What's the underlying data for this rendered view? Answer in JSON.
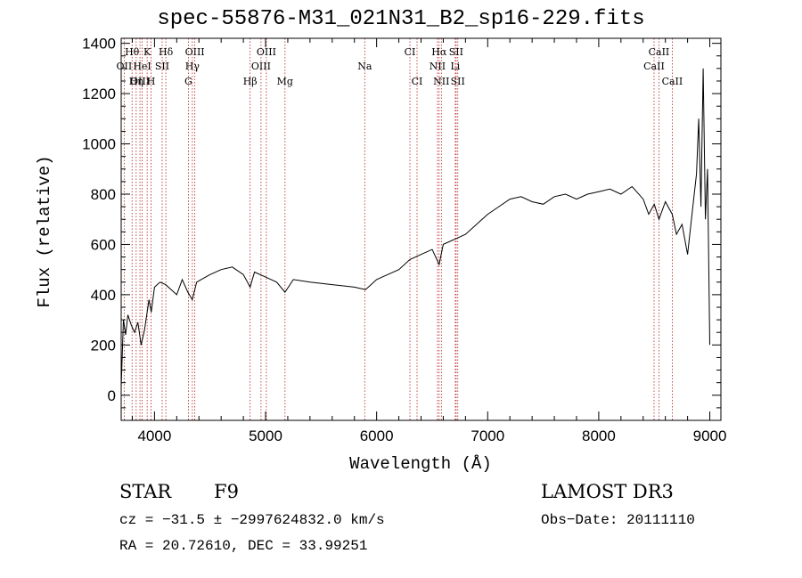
{
  "chart_data": {
    "type": "line",
    "title": "spec-55876-M31_021N31_B2_sp16-229.fits",
    "xlabel": "Wavelength (Å)",
    "ylabel": "Flux (relative)",
    "xlim": [
      3700,
      9100
    ],
    "ylim": [
      -100,
      1420
    ],
    "x_ticks": [
      4000,
      5000,
      6000,
      7000,
      8000,
      9000
    ],
    "y_ticks": [
      0,
      200,
      400,
      600,
      800,
      1000,
      1200,
      1400
    ],
    "grid": false,
    "line_color": "#000000",
    "marker_color": "#b22222",
    "spectrum": {
      "x": [
        3700,
        3720,
        3740,
        3760,
        3790,
        3820,
        3850,
        3880,
        3910,
        3930,
        3950,
        3970,
        4000,
        4050,
        4100,
        4150,
        4200,
        4250,
        4300,
        4340,
        4380,
        4420,
        4500,
        4600,
        4700,
        4800,
        4861,
        4900,
        5000,
        5100,
        5175,
        5250,
        5400,
        5600,
        5800,
        5900,
        5950,
        6000,
        6050,
        6100,
        6200,
        6300,
        6400,
        6500,
        6563,
        6600,
        6700,
        6800,
        6900,
        7000,
        7100,
        7200,
        7300,
        7400,
        7500,
        7600,
        7700,
        7800,
        7900,
        8000,
        8100,
        8200,
        8300,
        8400,
        8450,
        8500,
        8542,
        8600,
        8662,
        8700,
        8750,
        8800,
        8850,
        8880,
        8900,
        8920,
        8940,
        8960,
        8980,
        9000
      ],
      "y": [
        30,
        300,
        240,
        320,
        280,
        250,
        290,
        200,
        260,
        320,
        380,
        330,
        430,
        450,
        440,
        420,
        400,
        460,
        410,
        380,
        450,
        460,
        480,
        500,
        510,
        480,
        430,
        490,
        470,
        450,
        410,
        460,
        450,
        440,
        430,
        420,
        440,
        460,
        470,
        480,
        500,
        540,
        560,
        580,
        520,
        600,
        620,
        640,
        680,
        720,
        750,
        780,
        790,
        770,
        760,
        790,
        800,
        780,
        800,
        810,
        820,
        800,
        830,
        780,
        720,
        760,
        700,
        770,
        720,
        640,
        680,
        560,
        760,
        880,
        1100,
        750,
        1300,
        700,
        900,
        200
      ]
    },
    "lines": [
      {
        "label": "Hθ",
        "x": 3798,
        "row": 1
      },
      {
        "label": "OII",
        "x": 3727,
        "row": 2
      },
      {
        "label": "OIII",
        "x": 3869,
        "row": 3
      },
      {
        "label": "K",
        "x": 3934,
        "row": 1
      },
      {
        "label": "HeI",
        "x": 3889,
        "row": 2
      },
      {
        "label": "Hη",
        "x": 3835,
        "row": 3
      },
      {
        "label": "Hδ",
        "x": 4102,
        "row": 1
      },
      {
        "label": "SII",
        "x": 4069,
        "row": 2
      },
      {
        "label": "H",
        "x": 3969,
        "row": 3
      },
      {
        "label": "OIII",
        "x": 4363,
        "row": 1
      },
      {
        "label": "Hγ",
        "x": 4341,
        "row": 2
      },
      {
        "label": "G",
        "x": 4305,
        "row": 3
      },
      {
        "label": "OIII",
        "x": 5007,
        "row": 1
      },
      {
        "label": "OIII",
        "x": 4959,
        "row": 2
      },
      {
        "label": "Hβ",
        "x": 4861,
        "row": 3
      },
      {
        "label": "Mg",
        "x": 5175,
        "row": 3
      },
      {
        "label": "Na",
        "x": 5893,
        "row": 2
      },
      {
        "label": "CI",
        "x": 6300,
        "row": 1
      },
      {
        "label": "CI",
        "x": 6364,
        "row": 3
      },
      {
        "label": "Hα",
        "x": 6563,
        "row": 1
      },
      {
        "label": "SII",
        "x": 6716,
        "row": 1
      },
      {
        "label": "NII",
        "x": 6548,
        "row": 2
      },
      {
        "label": "Li",
        "x": 6708,
        "row": 2
      },
      {
        "label": "NII",
        "x": 6583,
        "row": 3
      },
      {
        "label": "SII",
        "x": 6731,
        "row": 3
      },
      {
        "label": "CaII",
        "x": 8542,
        "row": 1
      },
      {
        "label": "CaII",
        "x": 8498,
        "row": 2
      },
      {
        "label": "CaII",
        "x": 8662,
        "row": 3
      }
    ]
  },
  "info": {
    "class": "STAR",
    "subclass": "F9",
    "survey": "LAMOST DR3",
    "cz": "cz = −31.5 ± −2997624832.0 km/s",
    "obs_date": "Obs−Date: 20111110",
    "coords": "RA =  20.72610, DEC =  33.99251"
  }
}
